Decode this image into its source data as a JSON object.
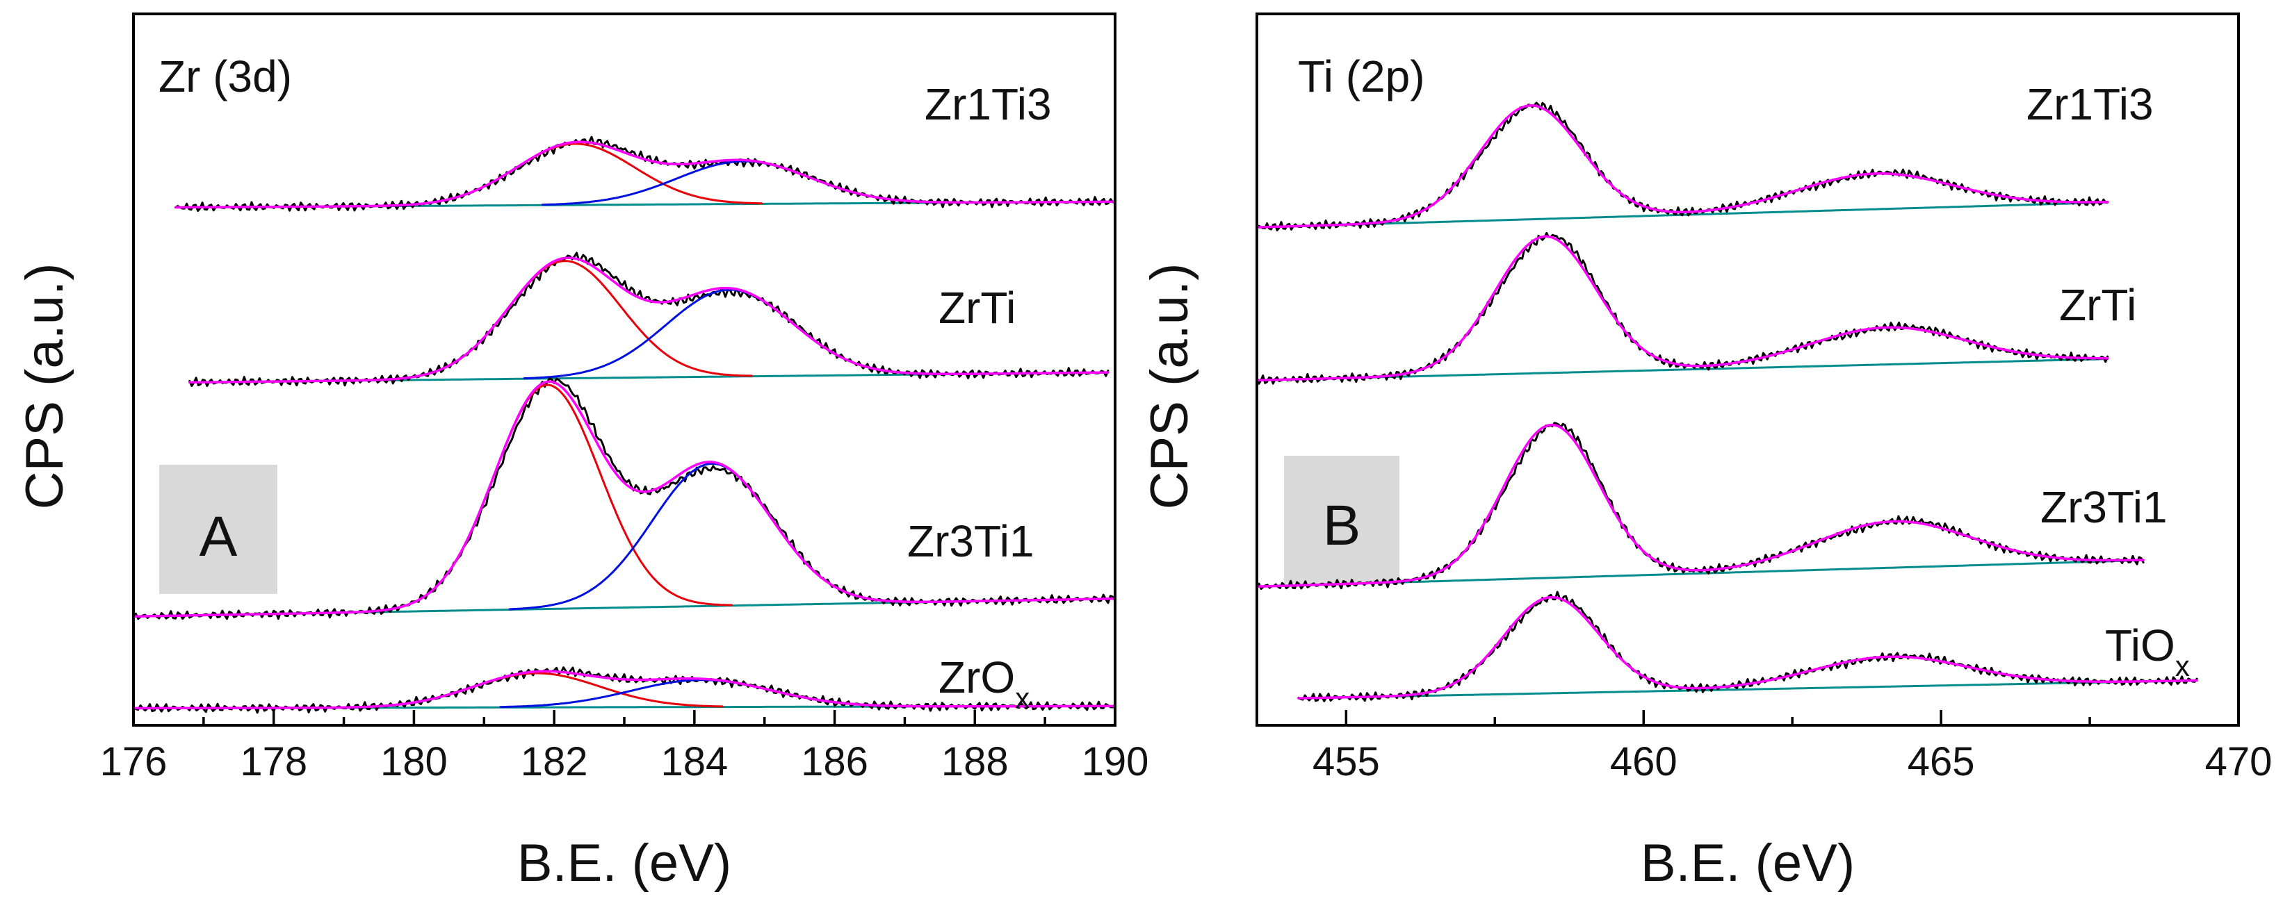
{
  "figure": {
    "colors": {
      "data": "#000000",
      "peak1": "#e8000b",
      "peak2": "#0010e0",
      "background": "#008c8c",
      "envelope": "#ff00ff",
      "label_box": "#d9d9d9"
    }
  },
  "chart_data": [
    {
      "type": "line",
      "panel_label": "A",
      "annotation": "Zr (3d)",
      "xlabel": "B.E. (eV)",
      "ylabel": "CPS (a.u.)",
      "xlim": [
        176,
        190
      ],
      "xticks": [
        176,
        178,
        180,
        182,
        184,
        186,
        188,
        190
      ],
      "xtick_labels": [
        "176",
        "178",
        "180",
        "182",
        "184",
        "186",
        "188",
        "190"
      ],
      "ylim": [
        0,
        100
      ],
      "y_ticks_shown": false,
      "series": [
        {
          "name": "Zr1Ti3",
          "label_main": "Zr1Ti3",
          "label_sub": "",
          "x_range": [
            176.6,
            190
          ],
          "baseline": [
            72.8,
            73.6
          ],
          "peaks": [
            {
              "center": 182.3,
              "height": 8.6,
              "width": 0.85
            },
            {
              "center": 184.7,
              "height": 6.0,
              "width": 0.95
            }
          ]
        },
        {
          "name": "ZrTi",
          "label_main": "ZrTi",
          "label_sub": "",
          "x_range": [
            176.8,
            189.9
          ],
          "baseline": [
            48.2,
            49.6
          ],
          "peaks": [
            {
              "center": 182.15,
              "height": 16.5,
              "width": 0.8
            },
            {
              "center": 184.5,
              "height": 12.2,
              "width": 0.9
            }
          ]
        },
        {
          "name": "Zr3Ti1",
          "label_main": "Zr3Ti1",
          "label_sub": "",
          "x_range": [
            176,
            190
          ],
          "baseline": [
            15.3,
            17.8
          ],
          "peaks": [
            {
              "center": 181.9,
              "height": 31.5,
              "width": 0.75
            },
            {
              "center": 184.25,
              "height": 20.0,
              "width": 0.85
            }
          ]
        },
        {
          "name": "ZrOx",
          "label_main": "ZrO",
          "label_sub": "x",
          "x_range": [
            176,
            190
          ],
          "baseline": [
            2.4,
            2.7
          ],
          "peaks": [
            {
              "center": 181.75,
              "height": 4.8,
              "width": 0.9
            },
            {
              "center": 184.1,
              "height": 3.8,
              "width": 1.0
            }
          ]
        }
      ]
    },
    {
      "type": "line",
      "panel_label": "B",
      "annotation": "Ti (2p)",
      "xlabel": "B.E. (eV)",
      "ylabel": "CPS (a.u.)",
      "xlim": [
        453.5,
        470
      ],
      "xticks": [
        455,
        460,
        465,
        470
      ],
      "xtick_labels": [
        "455",
        "460",
        "465",
        "470"
      ],
      "minor_xticks": [
        457.5,
        462.5,
        467.5
      ],
      "ylim": [
        0,
        100
      ],
      "y_ticks_shown": false,
      "series": [
        {
          "name": "Zr1Ti3",
          "label_main": "Zr1Ti3",
          "label_sub": "",
          "x_range": [
            453.5,
            467.8
          ],
          "baseline": [
            70.0,
            73.5
          ],
          "peaks": [
            {
              "center": 458.1,
              "height": 16.0,
              "width": 0.85
            },
            {
              "center": 463.9,
              "height": 5.0,
              "width": 1.3
            }
          ]
        },
        {
          "name": "ZrTi",
          "label_main": "ZrTi",
          "label_sub": "",
          "x_range": [
            453.5,
            467.8
          ],
          "baseline": [
            48.5,
            51.5
          ],
          "peaks": [
            {
              "center": 458.35,
              "height": 19.2,
              "width": 0.85
            },
            {
              "center": 464.1,
              "height": 5.2,
              "width": 1.3
            }
          ]
        },
        {
          "name": "Zr3Ti1",
          "label_main": "Zr3Ti1",
          "label_sub": "",
          "x_range": [
            453.5,
            468.4
          ],
          "baseline": [
            19.5,
            23.2
          ],
          "peaks": [
            {
              "center": 458.45,
              "height": 21.5,
              "width": 0.8
            },
            {
              "center": 464.2,
              "height": 6.5,
              "width": 1.3
            }
          ]
        },
        {
          "name": "TiOx",
          "label_main": "TiO",
          "label_sub": "x",
          "x_range": [
            454.2,
            469.3
          ],
          "baseline": [
            3.8,
            6.3
          ],
          "peaks": [
            {
              "center": 458.45,
              "height": 13.5,
              "width": 0.8
            },
            {
              "center": 464.15,
              "height": 4.2,
              "width": 1.3
            }
          ]
        }
      ]
    }
  ]
}
